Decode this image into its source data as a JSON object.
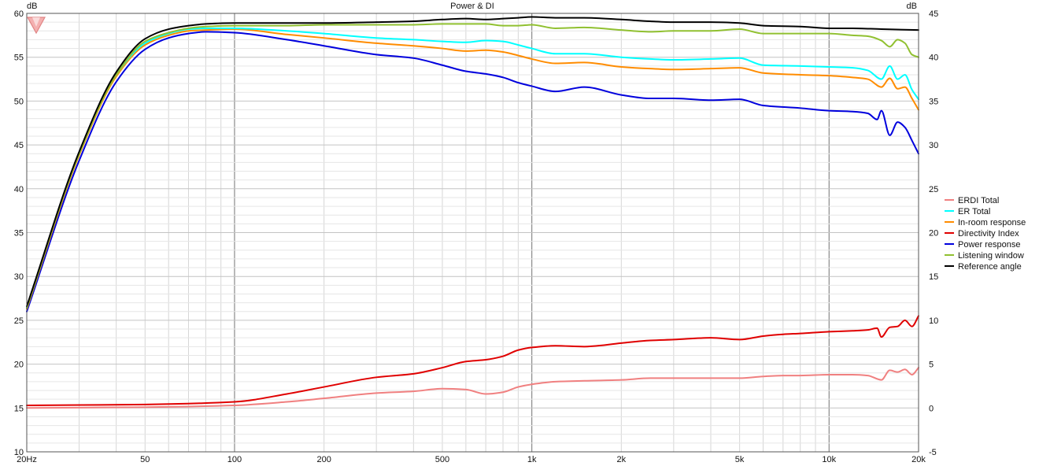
{
  "chart_data": {
    "type": "line",
    "title": "Power & DI",
    "ylabel_left": "dB",
    "ylabel_right": "dB",
    "x_scale": "log",
    "xlim": [
      20,
      20000
    ],
    "ylim_left": [
      10,
      60
    ],
    "ylim_right": [
      -5,
      45
    ],
    "grid": true,
    "legend_position": "right",
    "x_tick_labels": [
      {
        "value": 20,
        "label": "20Hz"
      },
      {
        "value": 50,
        "label": "50"
      },
      {
        "value": 100,
        "label": "100"
      },
      {
        "value": 200,
        "label": "200"
      },
      {
        "value": 500,
        "label": "500"
      },
      {
        "value": 1000,
        "label": "1k"
      },
      {
        "value": 2000,
        "label": "2k"
      },
      {
        "value": 5000,
        "label": "5k"
      },
      {
        "value": 10000,
        "label": "10k"
      },
      {
        "value": 20000,
        "label": "20k"
      }
    ],
    "y_left_ticks": [
      10,
      15,
      20,
      25,
      30,
      35,
      40,
      45,
      50,
      55,
      60
    ],
    "y_right_ticks": [
      -5,
      0,
      5,
      10,
      15,
      20,
      25,
      30,
      35,
      40,
      45
    ],
    "series": [
      {
        "name": "ERDI Total",
        "color": "#f08080",
        "axis": "right",
        "x": [
          20,
          50,
          100,
          150,
          200,
          300,
          400,
          500,
          600,
          700,
          800,
          900,
          1000,
          1200,
          1500,
          2000,
          2500,
          3000,
          4000,
          5000,
          6000,
          7000,
          8000,
          10000,
          12000,
          13500,
          15000,
          16000,
          17000,
          18000,
          19000,
          20000
        ],
        "y": [
          0,
          0.1,
          0.3,
          0.7,
          1.1,
          1.7,
          1.9,
          2.2,
          2.1,
          1.6,
          1.8,
          2.4,
          2.7,
          3.0,
          3.1,
          3.2,
          3.4,
          3.4,
          3.4,
          3.4,
          3.6,
          3.7,
          3.7,
          3.8,
          3.8,
          3.7,
          3.2,
          4.3,
          4.1,
          4.4,
          3.8,
          4.6
        ]
      },
      {
        "name": "ER Total",
        "color": "#00ffff",
        "axis": "left",
        "x": [
          20,
          30,
          40,
          50,
          60,
          70,
          80,
          100,
          150,
          200,
          300,
          400,
          500,
          600,
          700,
          800,
          900,
          1000,
          1200,
          1500,
          2000,
          2500,
          3000,
          4000,
          5000,
          6000,
          8000,
          10000,
          12000,
          13500,
          15000,
          16000,
          17000,
          18000,
          19000,
          20000
        ],
        "y": [
          26.5,
          44,
          53,
          56.6,
          57.7,
          58.2,
          58.3,
          58.3,
          58.0,
          57.7,
          57.2,
          57.0,
          56.8,
          56.7,
          56.9,
          56.8,
          56.4,
          56.0,
          55.4,
          55.4,
          55.0,
          54.8,
          54.7,
          54.8,
          54.9,
          54.1,
          54.0,
          53.9,
          53.8,
          53.5,
          52.5,
          54.0,
          52.5,
          53.0,
          51.3,
          50.2
        ]
      },
      {
        "name": "In-room response",
        "color": "#ff8c00",
        "axis": "left",
        "x": [
          20,
          30,
          40,
          50,
          60,
          70,
          80,
          100,
          150,
          200,
          300,
          400,
          500,
          600,
          700,
          800,
          900,
          1000,
          1200,
          1500,
          2000,
          2500,
          3000,
          4000,
          5000,
          6000,
          8000,
          10000,
          12000,
          13500,
          15000,
          16000,
          17000,
          18000,
          19000,
          20000
        ],
        "y": [
          26.3,
          43.8,
          52.8,
          56.4,
          57.5,
          58.0,
          58.1,
          58.2,
          57.6,
          57.2,
          56.6,
          56.3,
          56.0,
          55.7,
          55.8,
          55.6,
          55.2,
          54.8,
          54.3,
          54.4,
          53.9,
          53.7,
          53.6,
          53.7,
          53.8,
          53.2,
          53.0,
          52.9,
          52.7,
          52.5,
          51.6,
          52.6,
          51.4,
          51.6,
          50.3,
          49.0
        ]
      },
      {
        "name": "Directivity Index",
        "color": "#e00000",
        "axis": "right",
        "x": [
          20,
          50,
          100,
          150,
          200,
          300,
          400,
          500,
          600,
          700,
          800,
          900,
          1000,
          1200,
          1500,
          2000,
          2500,
          3000,
          4000,
          5000,
          6000,
          7000,
          8000,
          10000,
          12000,
          13500,
          14500,
          15000,
          16000,
          17000,
          18000,
          19000,
          20000
        ],
        "y": [
          0.3,
          0.4,
          0.7,
          1.6,
          2.4,
          3.5,
          3.9,
          4.6,
          5.3,
          5.5,
          5.9,
          6.6,
          6.9,
          7.1,
          7.0,
          7.4,
          7.7,
          7.8,
          8.0,
          7.8,
          8.2,
          8.4,
          8.5,
          8.7,
          8.8,
          8.9,
          9.1,
          8.1,
          9.2,
          9.3,
          10.0,
          9.3,
          10.5
        ]
      },
      {
        "name": "Power response",
        "color": "#0000dd",
        "axis": "left",
        "x": [
          20,
          30,
          40,
          50,
          60,
          70,
          80,
          100,
          150,
          200,
          300,
          400,
          500,
          600,
          700,
          800,
          900,
          1000,
          1200,
          1500,
          2000,
          2500,
          3000,
          4000,
          5000,
          6000,
          8000,
          10000,
          12000,
          13500,
          14500,
          15000,
          16000,
          17000,
          18000,
          19000,
          20000
        ],
        "y": [
          26.0,
          43.2,
          52.2,
          55.9,
          57.2,
          57.7,
          57.9,
          57.8,
          57.0,
          56.3,
          55.3,
          54.9,
          54.1,
          53.4,
          53.1,
          52.7,
          52.1,
          51.7,
          51.1,
          51.6,
          50.7,
          50.3,
          50.3,
          50.1,
          50.2,
          49.5,
          49.2,
          48.9,
          48.8,
          48.6,
          47.9,
          48.9,
          46.1,
          47.6,
          47.0,
          45.5,
          44.0
        ]
      },
      {
        "name": "Listening window",
        "color": "#90c030",
        "axis": "left",
        "x": [
          20,
          30,
          40,
          50,
          60,
          70,
          80,
          100,
          150,
          200,
          300,
          400,
          500,
          600,
          700,
          800,
          900,
          1000,
          1200,
          1500,
          2000,
          2500,
          3000,
          4000,
          5000,
          6000,
          8000,
          10000,
          12000,
          13500,
          15000,
          16000,
          17000,
          18000,
          19000,
          20000
        ],
        "y": [
          26.4,
          44,
          53,
          56.8,
          57.8,
          58.3,
          58.5,
          58.6,
          58.6,
          58.7,
          58.7,
          58.7,
          58.8,
          58.8,
          58.8,
          58.6,
          58.6,
          58.7,
          58.3,
          58.4,
          58.1,
          57.9,
          58.0,
          58.0,
          58.2,
          57.7,
          57.7,
          57.7,
          57.5,
          57.4,
          56.9,
          56.2,
          57.0,
          56.6,
          55.3,
          55.0
        ]
      },
      {
        "name": "Reference angle",
        "color": "#000000",
        "axis": "left",
        "x": [
          20,
          30,
          40,
          50,
          60,
          70,
          80,
          100,
          150,
          200,
          300,
          400,
          500,
          600,
          700,
          800,
          900,
          1000,
          1200,
          1500,
          2000,
          2500,
          3000,
          4000,
          5000,
          6000,
          8000,
          10000,
          12000,
          15000,
          20000
        ],
        "y": [
          26.6,
          44.2,
          53.3,
          57.1,
          58.2,
          58.6,
          58.8,
          58.9,
          58.9,
          58.9,
          59.0,
          59.1,
          59.3,
          59.4,
          59.3,
          59.4,
          59.5,
          59.6,
          59.5,
          59.5,
          59.3,
          59.1,
          59.0,
          59.0,
          58.9,
          58.6,
          58.5,
          58.3,
          58.3,
          58.2,
          58.1
        ]
      }
    ]
  }
}
